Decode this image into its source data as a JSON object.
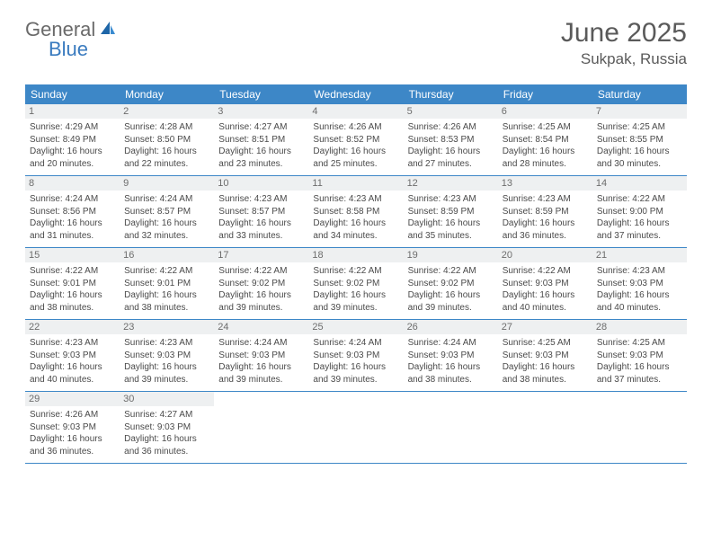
{
  "logo": {
    "text1": "General",
    "text2": "Blue"
  },
  "title": "June 2025",
  "location": "Sukpak, Russia",
  "colors": {
    "header_bg": "#3d87c7",
    "header_text": "#ffffff",
    "daynum_bg": "#eef0f1",
    "daynum_text": "#6d6d6d",
    "body_text": "#4a4a4a",
    "row_border": "#3d87c7",
    "logo_gray": "#6a6a6a",
    "logo_blue": "#3a7bbf"
  },
  "days_of_week": [
    "Sunday",
    "Monday",
    "Tuesday",
    "Wednesday",
    "Thursday",
    "Friday",
    "Saturday"
  ],
  "weeks": [
    [
      {
        "n": "1",
        "sr": "Sunrise: 4:29 AM",
        "ss": "Sunset: 8:49 PM",
        "dl": "Daylight: 16 hours and 20 minutes."
      },
      {
        "n": "2",
        "sr": "Sunrise: 4:28 AM",
        "ss": "Sunset: 8:50 PM",
        "dl": "Daylight: 16 hours and 22 minutes."
      },
      {
        "n": "3",
        "sr": "Sunrise: 4:27 AM",
        "ss": "Sunset: 8:51 PM",
        "dl": "Daylight: 16 hours and 23 minutes."
      },
      {
        "n": "4",
        "sr": "Sunrise: 4:26 AM",
        "ss": "Sunset: 8:52 PM",
        "dl": "Daylight: 16 hours and 25 minutes."
      },
      {
        "n": "5",
        "sr": "Sunrise: 4:26 AM",
        "ss": "Sunset: 8:53 PM",
        "dl": "Daylight: 16 hours and 27 minutes."
      },
      {
        "n": "6",
        "sr": "Sunrise: 4:25 AM",
        "ss": "Sunset: 8:54 PM",
        "dl": "Daylight: 16 hours and 28 minutes."
      },
      {
        "n": "7",
        "sr": "Sunrise: 4:25 AM",
        "ss": "Sunset: 8:55 PM",
        "dl": "Daylight: 16 hours and 30 minutes."
      }
    ],
    [
      {
        "n": "8",
        "sr": "Sunrise: 4:24 AM",
        "ss": "Sunset: 8:56 PM",
        "dl": "Daylight: 16 hours and 31 minutes."
      },
      {
        "n": "9",
        "sr": "Sunrise: 4:24 AM",
        "ss": "Sunset: 8:57 PM",
        "dl": "Daylight: 16 hours and 32 minutes."
      },
      {
        "n": "10",
        "sr": "Sunrise: 4:23 AM",
        "ss": "Sunset: 8:57 PM",
        "dl": "Daylight: 16 hours and 33 minutes."
      },
      {
        "n": "11",
        "sr": "Sunrise: 4:23 AM",
        "ss": "Sunset: 8:58 PM",
        "dl": "Daylight: 16 hours and 34 minutes."
      },
      {
        "n": "12",
        "sr": "Sunrise: 4:23 AM",
        "ss": "Sunset: 8:59 PM",
        "dl": "Daylight: 16 hours and 35 minutes."
      },
      {
        "n": "13",
        "sr": "Sunrise: 4:23 AM",
        "ss": "Sunset: 8:59 PM",
        "dl": "Daylight: 16 hours and 36 minutes."
      },
      {
        "n": "14",
        "sr": "Sunrise: 4:22 AM",
        "ss": "Sunset: 9:00 PM",
        "dl": "Daylight: 16 hours and 37 minutes."
      }
    ],
    [
      {
        "n": "15",
        "sr": "Sunrise: 4:22 AM",
        "ss": "Sunset: 9:01 PM",
        "dl": "Daylight: 16 hours and 38 minutes."
      },
      {
        "n": "16",
        "sr": "Sunrise: 4:22 AM",
        "ss": "Sunset: 9:01 PM",
        "dl": "Daylight: 16 hours and 38 minutes."
      },
      {
        "n": "17",
        "sr": "Sunrise: 4:22 AM",
        "ss": "Sunset: 9:02 PM",
        "dl": "Daylight: 16 hours and 39 minutes."
      },
      {
        "n": "18",
        "sr": "Sunrise: 4:22 AM",
        "ss": "Sunset: 9:02 PM",
        "dl": "Daylight: 16 hours and 39 minutes."
      },
      {
        "n": "19",
        "sr": "Sunrise: 4:22 AM",
        "ss": "Sunset: 9:02 PM",
        "dl": "Daylight: 16 hours and 39 minutes."
      },
      {
        "n": "20",
        "sr": "Sunrise: 4:22 AM",
        "ss": "Sunset: 9:03 PM",
        "dl": "Daylight: 16 hours and 40 minutes."
      },
      {
        "n": "21",
        "sr": "Sunrise: 4:23 AM",
        "ss": "Sunset: 9:03 PM",
        "dl": "Daylight: 16 hours and 40 minutes."
      }
    ],
    [
      {
        "n": "22",
        "sr": "Sunrise: 4:23 AM",
        "ss": "Sunset: 9:03 PM",
        "dl": "Daylight: 16 hours and 40 minutes."
      },
      {
        "n": "23",
        "sr": "Sunrise: 4:23 AM",
        "ss": "Sunset: 9:03 PM",
        "dl": "Daylight: 16 hours and 39 minutes."
      },
      {
        "n": "24",
        "sr": "Sunrise: 4:24 AM",
        "ss": "Sunset: 9:03 PM",
        "dl": "Daylight: 16 hours and 39 minutes."
      },
      {
        "n": "25",
        "sr": "Sunrise: 4:24 AM",
        "ss": "Sunset: 9:03 PM",
        "dl": "Daylight: 16 hours and 39 minutes."
      },
      {
        "n": "26",
        "sr": "Sunrise: 4:24 AM",
        "ss": "Sunset: 9:03 PM",
        "dl": "Daylight: 16 hours and 38 minutes."
      },
      {
        "n": "27",
        "sr": "Sunrise: 4:25 AM",
        "ss": "Sunset: 9:03 PM",
        "dl": "Daylight: 16 hours and 38 minutes."
      },
      {
        "n": "28",
        "sr": "Sunrise: 4:25 AM",
        "ss": "Sunset: 9:03 PM",
        "dl": "Daylight: 16 hours and 37 minutes."
      }
    ],
    [
      {
        "n": "29",
        "sr": "Sunrise: 4:26 AM",
        "ss": "Sunset: 9:03 PM",
        "dl": "Daylight: 16 hours and 36 minutes."
      },
      {
        "n": "30",
        "sr": "Sunrise: 4:27 AM",
        "ss": "Sunset: 9:03 PM",
        "dl": "Daylight: 16 hours and 36 minutes."
      },
      null,
      null,
      null,
      null,
      null
    ]
  ]
}
